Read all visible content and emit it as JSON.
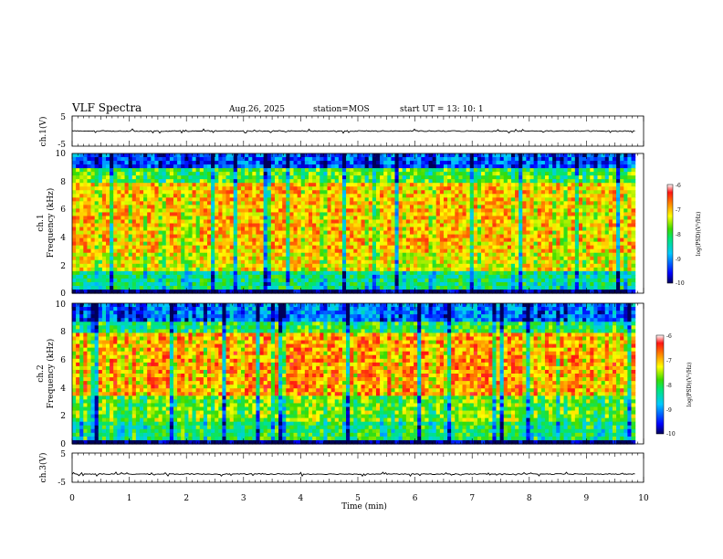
{
  "header": {
    "title": "VLF Spectra",
    "date": "Aug.26, 2025",
    "station": "station=MOS",
    "start_ut": "start  UT =   13: 10: 1"
  },
  "chart_data": [
    {
      "type": "line",
      "panel": "ch1-waveform",
      "ylabel": "ch.1(V)",
      "ylim": [
        -5,
        5
      ],
      "yticks": [
        "5",
        "-5"
      ],
      "xlim": [
        0,
        10
      ],
      "series": [
        {
          "values_approx": 0
        }
      ],
      "line_color": "#000000"
    },
    {
      "type": "heatmap",
      "panel": "ch1-spectrogram",
      "ylabel": "ch.1",
      "ylabel2": "Frequency (kHz)",
      "ylim": [
        0,
        10
      ],
      "yticks": [
        "0",
        "2",
        "4",
        "6",
        "8",
        "10"
      ],
      "xlim": [
        0,
        9.85
      ],
      "colorbar": {
        "label": "log(PSD)(V²/Hz)",
        "range": [
          -10,
          -6
        ],
        "ticks": [
          "-6",
          "-7",
          "-8",
          "-9",
          "-10"
        ]
      },
      "bands": [
        {
          "f": [
            0,
            0.3
          ],
          "level": -9.9
        },
        {
          "f": [
            0.3,
            1.5
          ],
          "level": -8.2
        },
        {
          "f": [
            1.5,
            3.0
          ],
          "level": -7.2
        },
        {
          "f": [
            3.0,
            8.0
          ],
          "level": -7.0
        },
        {
          "f": [
            8.0,
            9.0
          ],
          "level": -7.8
        },
        {
          "f": [
            9.0,
            10.0
          ],
          "level": -9.2
        }
      ]
    },
    {
      "type": "heatmap",
      "panel": "ch2-spectrogram",
      "ylabel": "ch.2",
      "ylabel2": "Frequency (kHz)",
      "ylim": [
        0,
        10
      ],
      "yticks": [
        "0",
        "2",
        "4",
        "6",
        "8",
        "10"
      ],
      "xlim": [
        0,
        9.85
      ],
      "colorbar": {
        "label": "log(PSD)(V²/Hz)",
        "range": [
          -10,
          -6
        ],
        "ticks": [
          "-6",
          "-7",
          "-8",
          "-9",
          "-10"
        ]
      },
      "bands": [
        {
          "f": [
            0,
            0.3
          ],
          "level": -9.9
        },
        {
          "f": [
            0.3,
            1.5
          ],
          "level": -8.0
        },
        {
          "f": [
            1.5,
            3.5
          ],
          "level": -7.6
        },
        {
          "f": [
            3.5,
            7.8
          ],
          "level": -6.8
        },
        {
          "f": [
            7.8,
            8.8
          ],
          "level": -7.9
        },
        {
          "f": [
            8.8,
            10.0
          ],
          "level": -9.0
        }
      ]
    },
    {
      "type": "line",
      "panel": "ch3-waveform",
      "ylabel": "ch.3(V)",
      "ylim": [
        -5,
        5
      ],
      "yticks": [
        "5",
        "-5"
      ],
      "xlim": [
        0,
        10
      ],
      "series": [
        {
          "values_approx": -2.2
        }
      ],
      "line_color": "#000000"
    }
  ],
  "xaxis": {
    "label": "Time (min)",
    "range": [
      0,
      10
    ],
    "ticks": [
      "0",
      "1",
      "2",
      "3",
      "4",
      "5",
      "6",
      "7",
      "8",
      "9",
      "10"
    ]
  }
}
